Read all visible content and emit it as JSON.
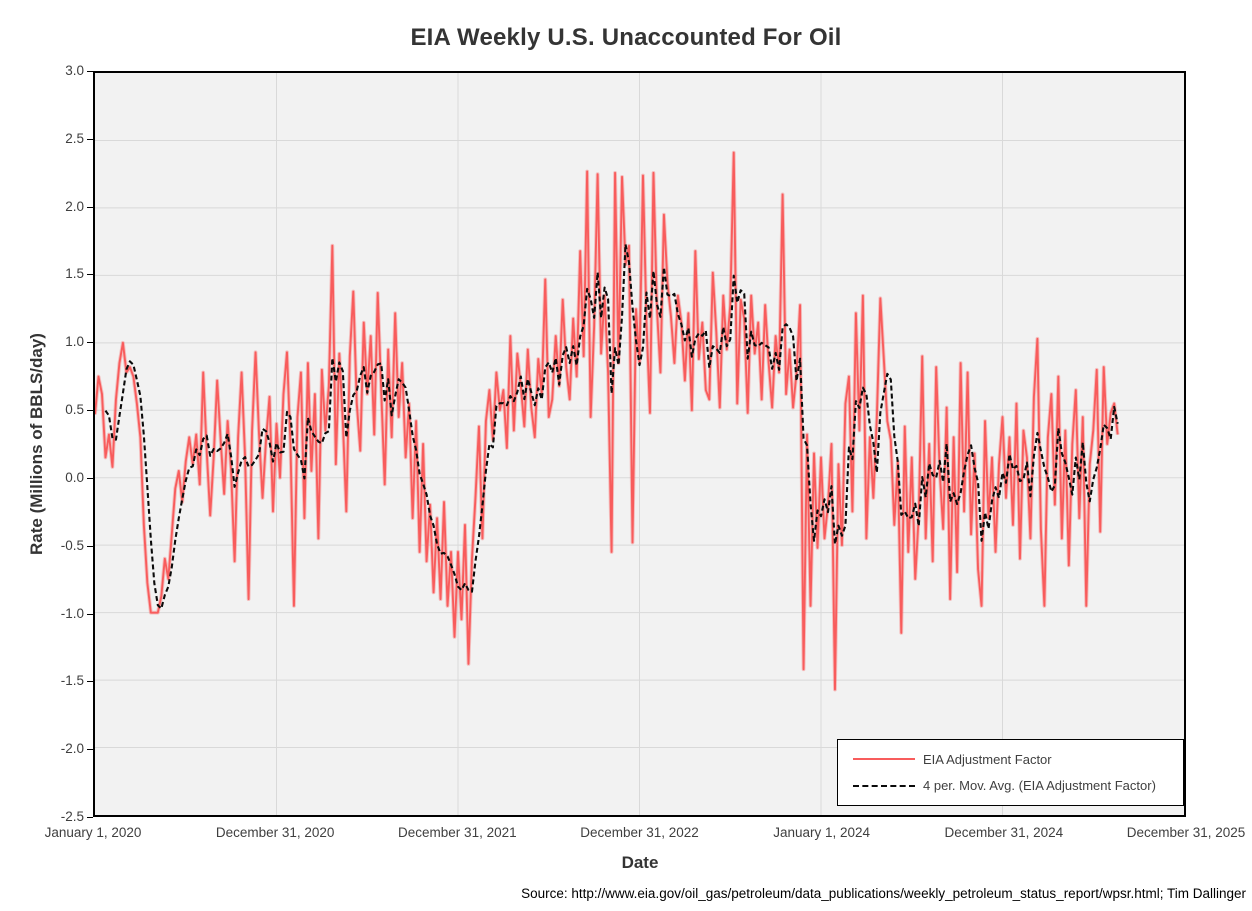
{
  "title": "EIA Weekly U.S. Unaccounted For Oil",
  "source": "Source: http://www.eia.gov/oil_gas/petroleum/data_publications/weekly_petroleum_status_report/wpsr.html; Tim Dallinger",
  "colors": {
    "series_red": "#f85c5c",
    "series_red_halo": "rgba(250,96,96,0.35)",
    "moving_avg_black": "#0b0b0b",
    "plot_background": "#f2f2f2",
    "gridline": "#d9d9d9",
    "axis_border": "#000000",
    "text": "#3f3f3f"
  },
  "chart_data": {
    "type": "line",
    "title": "EIA Weekly U.S. Unaccounted For Oil",
    "xlabel": "Date",
    "ylabel": "Rate (Millions of BBLS/day)",
    "ylim": [
      -2.5,
      3.0
    ],
    "y_tick_step": 0.5,
    "y_tick_labels": [
      "3.0",
      "2.5",
      "2.0",
      "1.5",
      "1.0",
      "0.5",
      "0.0",
      "-0.5",
      "-1.0",
      "-1.5",
      "-2.0",
      "-2.5"
    ],
    "x_tick_labels": [
      "January 1, 2020",
      "December 31, 2020",
      "December 31, 2021",
      "December 31, 2022",
      "January 1, 2024",
      "December 31, 2024",
      "December 31, 2025"
    ],
    "x_axis_span_years": 6,
    "grid": true,
    "legend_position": "inside-bottom-right",
    "x_unit": "weeks since January 1, 2020",
    "series": [
      {
        "name": "EIA Adjustment Factor",
        "style": "solid",
        "color": "#f85c5c",
        "weekly_values": [
          0.47,
          0.75,
          0.62,
          0.15,
          0.32,
          0.08,
          0.58,
          0.85,
          1.0,
          0.78,
          0.82,
          0.75,
          0.55,
          0.3,
          -0.35,
          -0.78,
          -1.0,
          -1.0,
          -1.0,
          -0.88,
          -0.6,
          -0.75,
          -0.42,
          -0.08,
          0.05,
          -0.18,
          0.12,
          0.3,
          0.1,
          0.32,
          -0.05,
          0.78,
          0.2,
          -0.28,
          0.15,
          0.72,
          0.28,
          -0.12,
          0.42,
          0.05,
          -0.62,
          0.3,
          0.78,
          0.15,
          -0.9,
          0.35,
          0.93,
          0.32,
          -0.15,
          0.28,
          0.6,
          -0.25,
          0.4,
          0.0,
          0.62,
          0.93,
          0.25,
          -0.95,
          0.45,
          0.78,
          -0.3,
          0.85,
          0.05,
          0.62,
          -0.45,
          0.8,
          0.35,
          0.68,
          1.72,
          0.1,
          0.92,
          0.42,
          -0.25,
          0.9,
          1.38,
          0.55,
          0.2,
          1.15,
          0.62,
          1.05,
          0.32,
          1.37,
          0.65,
          -0.05,
          0.95,
          0.3,
          1.22,
          0.45,
          0.85,
          0.15,
          0.55,
          -0.3,
          0.42,
          -0.55,
          0.25,
          -0.62,
          -0.2,
          -0.85,
          -0.3,
          -0.9,
          -0.18,
          -0.95,
          -0.55,
          -1.18,
          -0.55,
          -1.05,
          -0.35,
          -1.38,
          -0.6,
          -0.15,
          0.38,
          -0.45,
          0.42,
          0.65,
          0.28,
          0.78,
          0.5,
          0.65,
          0.22,
          1.05,
          0.35,
          0.92,
          0.68,
          0.38,
          0.95,
          0.52,
          0.3,
          0.88,
          0.62,
          1.47,
          0.45,
          0.58,
          1.05,
          0.68,
          1.32,
          0.82,
          0.58,
          1.18,
          0.75,
          1.68,
          0.9,
          2.27,
          0.45,
          1.12,
          2.25,
          0.92,
          1.35,
          0.78,
          -0.55,
          2.26,
          0.85,
          2.23,
          1.58,
          1.72,
          -0.48,
          1.25,
          0.85,
          2.24,
          1.15,
          0.48,
          2.26,
          1.25,
          0.78,
          1.95,
          1.45,
          1.2,
          0.85,
          1.35,
          1.15,
          0.72,
          1.22,
          0.5,
          1.68,
          0.88,
          1.15,
          0.65,
          0.58,
          1.52,
          1.08,
          0.52,
          1.35,
          0.95,
          1.28,
          2.41,
          0.55,
          1.32,
          1.18,
          0.48,
          1.35,
          0.92,
          1.15,
          0.58,
          1.28,
          0.85,
          0.52,
          1.05,
          0.78,
          2.1,
          0.62,
          0.95,
          0.52,
          0.78,
          1.28,
          -1.42,
          0.32,
          -0.95,
          0.18,
          -0.52,
          0.15,
          -0.45,
          -0.2,
          0.25,
          -1.57,
          0.1,
          -0.5,
          0.55,
          0.75,
          -0.25,
          1.22,
          0.35,
          1.35,
          -0.45,
          0.3,
          -0.15,
          0.45,
          1.33,
          0.88,
          0.42,
          0.28,
          -0.35,
          0.12,
          -1.15,
          0.38,
          -0.55,
          0.15,
          -0.75,
          -0.28,
          0.9,
          -0.45,
          0.25,
          -0.62,
          0.82,
          0.05,
          -0.38,
          0.52,
          -0.9,
          0.3,
          -0.7,
          0.85,
          -0.25,
          0.78,
          -0.42,
          0.18,
          -0.68,
          -0.95,
          0.42,
          -0.3,
          0.15,
          -0.55,
          0.1,
          0.45,
          -0.15,
          0.3,
          -0.35,
          0.55,
          -0.6,
          0.35,
          0.15,
          -0.45,
          0.6,
          1.03,
          -0.38,
          -0.95,
          0.3,
          0.62,
          -0.2,
          0.75,
          -0.45,
          0.35,
          -0.65,
          0.25,
          0.65,
          -0.3,
          0.45,
          -0.95,
          0.1,
          0.35,
          0.8,
          -0.4,
          0.82,
          0.25,
          0.48,
          0.55,
          0.32
        ]
      },
      {
        "name": "4 per. Mov. Avg. (EIA Adjustment Factor)",
        "style": "dashed",
        "color": "#0b0b0b",
        "derived": "trailing 4-week moving average of EIA Adjustment Factor"
      }
    ]
  }
}
